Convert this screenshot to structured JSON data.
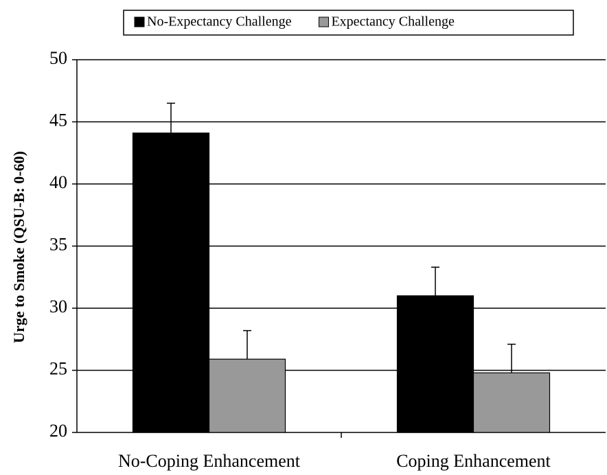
{
  "chart_data": {
    "type": "bar",
    "y_label": "Urge to Smoke (QSU-B: 0-60)",
    "categories": [
      "No-Coping Enhancement",
      "Coping Enhancement"
    ],
    "series": [
      {
        "name": "No-Expectancy Challenge",
        "color": "#000000",
        "values": [
          44.1,
          31.0
        ],
        "errors": [
          2.4,
          2.3
        ]
      },
      {
        "name": "Expectancy Challenge",
        "color": "#999999",
        "values": [
          25.9,
          24.8
        ],
        "errors": [
          2.3,
          2.3
        ]
      }
    ],
    "ylim": [
      20,
      50
    ],
    "yticks": [
      20,
      25,
      30,
      35,
      40,
      45,
      50
    ],
    "grid": true,
    "legend": "top"
  }
}
